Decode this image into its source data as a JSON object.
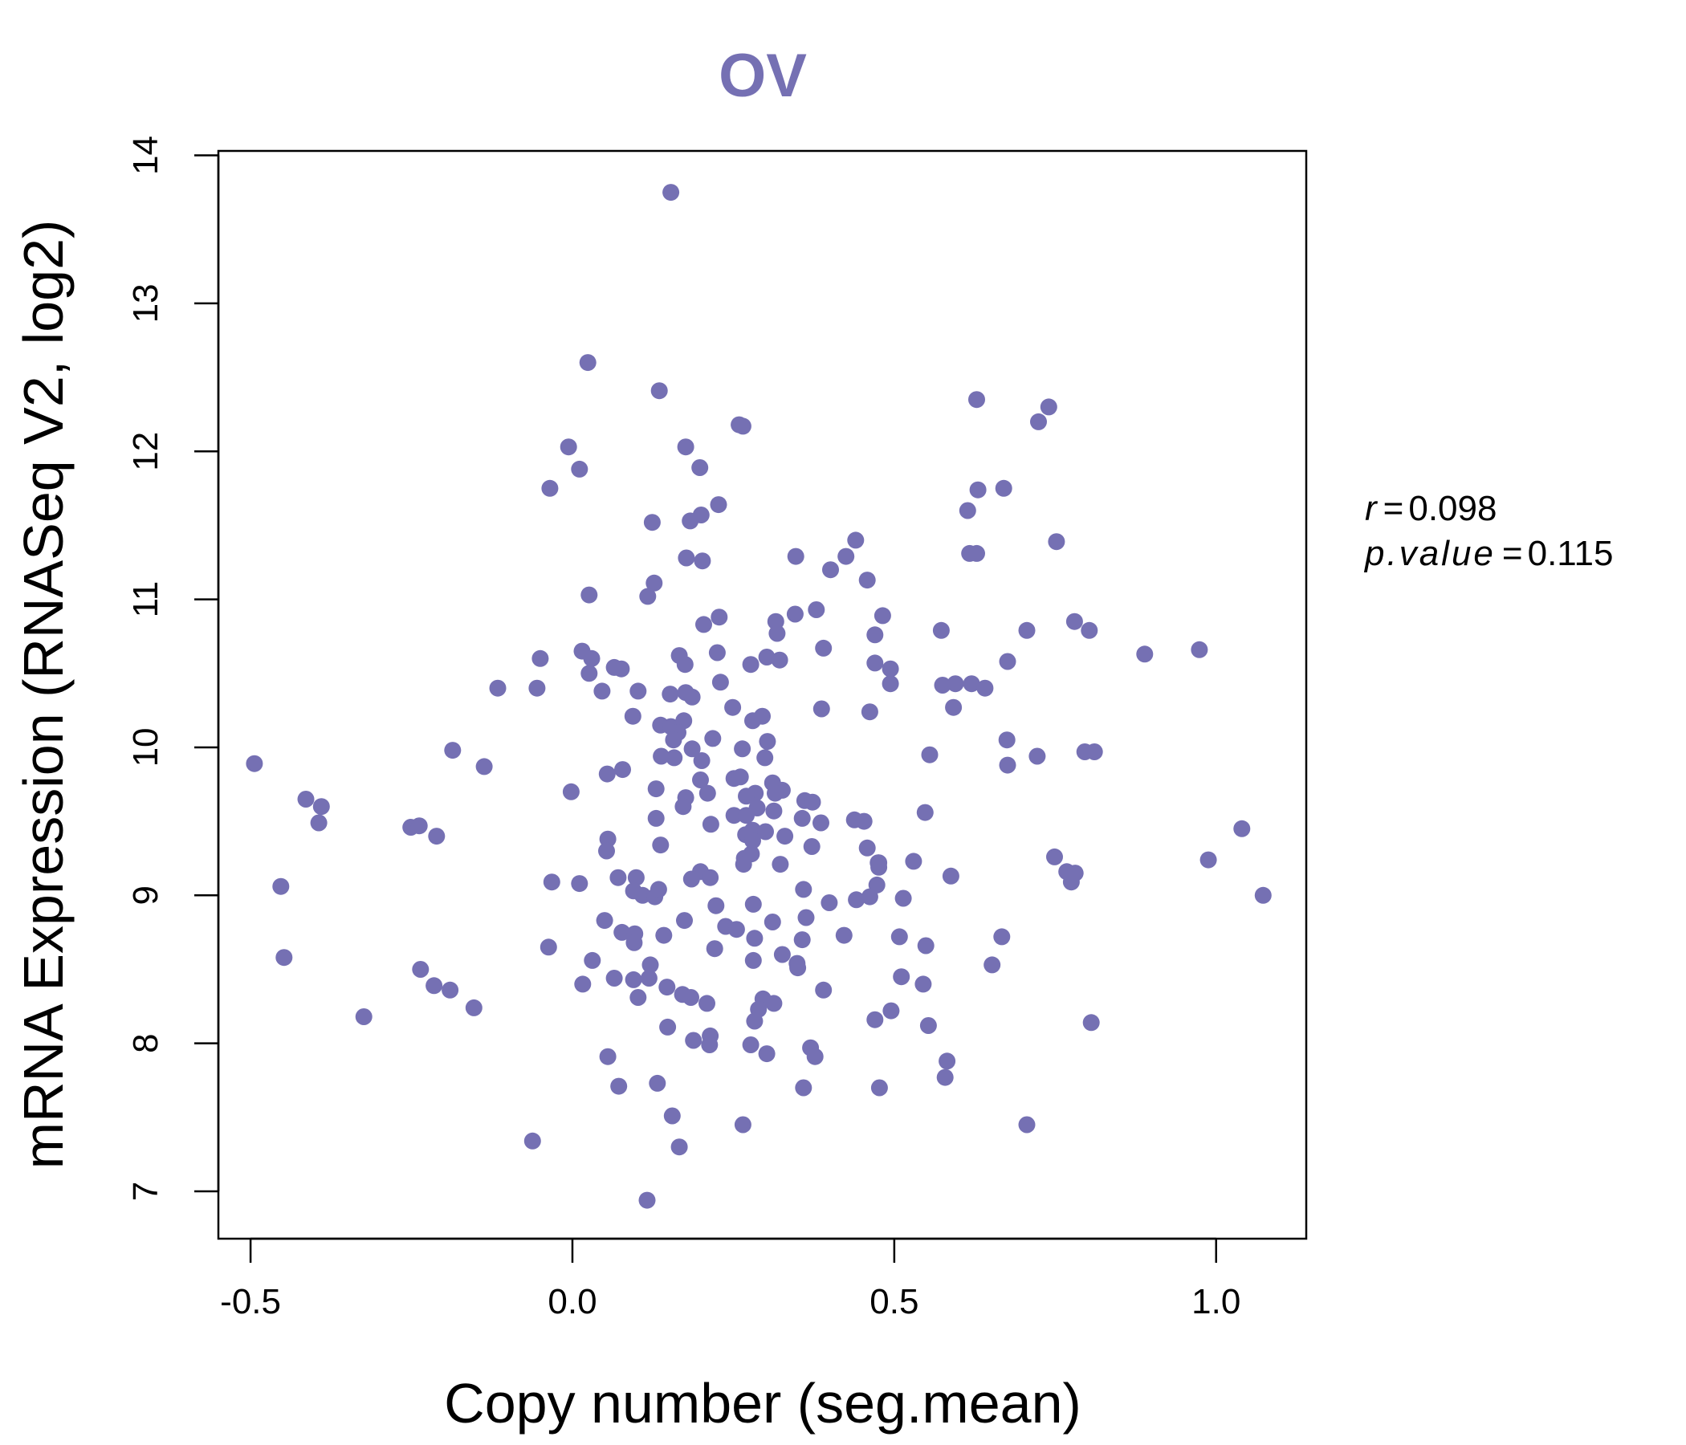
{
  "chart_data": {
    "type": "scatter",
    "title": "OV",
    "xlabel": "Copy number (seg.mean)",
    "ylabel": "mRNA Expression (RNASeq V2, log2)",
    "xlim": [
      -0.55,
      1.14
    ],
    "ylim": [
      6.68,
      14.03
    ],
    "x_ticks": [
      -0.5,
      0.0,
      0.5,
      1.0
    ],
    "x_tick_labels": [
      "-0.5",
      "0.0",
      "0.5",
      "1.0"
    ],
    "y_ticks": [
      7,
      8,
      9,
      10,
      11,
      12,
      13,
      14
    ],
    "y_tick_labels": [
      "7",
      "8",
      "9",
      "10",
      "11",
      "12",
      "13",
      "14"
    ],
    "grid": false,
    "point_color": "#7570b3",
    "stats": {
      "r_label": "r",
      "r_value": "0.098",
      "p_label": "p.value",
      "p_value": "0.115"
    },
    "points": [
      [
        0.153,
        13.75
      ],
      [
        0.024,
        12.6
      ],
      [
        0.135,
        12.41
      ],
      [
        0.259,
        12.18
      ],
      [
        0.265,
        12.17
      ],
      [
        -0.006,
        12.03
      ],
      [
        0.176,
        12.03
      ],
      [
        0.198,
        11.89
      ],
      [
        0.011,
        11.88
      ],
      [
        -0.035,
        11.75
      ],
      [
        0.227,
        11.64
      ],
      [
        0.2,
        11.57
      ],
      [
        0.183,
        11.53
      ],
      [
        0.124,
        11.52
      ],
      [
        0.177,
        11.28
      ],
      [
        0.202,
        11.26
      ],
      [
        0.127,
        11.11
      ],
      [
        0.117,
        11.02
      ],
      [
        0.026,
        11.03
      ],
      [
        0.316,
        10.85
      ],
      [
        0.228,
        10.88
      ],
      [
        0.204,
        10.83
      ],
      [
        0.318,
        10.77
      ],
      [
        0.346,
        10.9
      ],
      [
        0.379,
        10.93
      ],
      [
        0.401,
        11.2
      ],
      [
        0.425,
        11.29
      ],
      [
        0.44,
        11.4
      ],
      [
        0.458,
        11.13
      ],
      [
        0.482,
        10.89
      ],
      [
        0.47,
        10.76
      ],
      [
        0.347,
        11.29
      ],
      [
        0.015,
        10.65
      ],
      [
        0.03,
        10.6
      ],
      [
        0.026,
        10.5
      ],
      [
        0.065,
        10.54
      ],
      [
        0.076,
        10.53
      ],
      [
        0.166,
        10.62
      ],
      [
        0.175,
        10.56
      ],
      [
        0.225,
        10.64
      ],
      [
        0.277,
        10.56
      ],
      [
        0.302,
        10.61
      ],
      [
        0.322,
        10.59
      ],
      [
        0.39,
        10.67
      ],
      [
        0.47,
        10.57
      ],
      [
        0.494,
        10.53
      ],
      [
        0.494,
        10.43
      ],
      [
        0.046,
        10.38
      ],
      [
        0.102,
        10.38
      ],
      [
        0.152,
        10.36
      ],
      [
        0.176,
        10.37
      ],
      [
        0.186,
        10.34
      ],
      [
        0.23,
        10.44
      ],
      [
        0.249,
        10.27
      ],
      [
        0.295,
        10.21
      ],
      [
        0.387,
        10.26
      ],
      [
        0.462,
        10.24
      ],
      [
        -0.055,
        10.4
      ],
      [
        -0.116,
        10.4
      ],
      [
        -0.05,
        10.6
      ],
      [
        0.137,
        10.15
      ],
      [
        0.153,
        10.14
      ],
      [
        0.173,
        10.18
      ],
      [
        0.164,
        10.1
      ],
      [
        0.157,
        10.05
      ],
      [
        0.094,
        10.21
      ],
      [
        0.28,
        10.18
      ],
      [
        0.218,
        10.06
      ],
      [
        0.303,
        10.04
      ],
      [
        0.264,
        9.99
      ],
      [
        0.186,
        9.99
      ],
      [
        0.201,
        9.91
      ],
      [
        0.299,
        9.93
      ],
      [
        0.158,
        9.93
      ],
      [
        0.138,
        9.94
      ],
      [
        0.078,
        9.85
      ],
      [
        0.054,
        9.82
      ],
      [
        0.199,
        9.78
      ],
      [
        0.251,
        9.79
      ],
      [
        0.261,
        9.8
      ],
      [
        0.311,
        9.76
      ],
      [
        0.326,
        9.71
      ],
      [
        0.315,
        9.69
      ],
      [
        0.13,
        9.72
      ],
      [
        0.176,
        9.66
      ],
      [
        0.21,
        9.69
      ],
      [
        0.172,
        9.6
      ],
      [
        0.284,
        9.69
      ],
      [
        0.27,
        9.67
      ],
      [
        0.361,
        9.64
      ],
      [
        0.373,
        9.63
      ],
      [
        0.13,
        9.52
      ],
      [
        0.251,
        9.54
      ],
      [
        0.27,
        9.54
      ],
      [
        0.287,
        9.59
      ],
      [
        0.313,
        9.57
      ],
      [
        0.357,
        9.52
      ],
      [
        0.386,
        9.49
      ],
      [
        0.438,
        9.51
      ],
      [
        0.453,
        9.5
      ],
      [
        0.215,
        9.48
      ],
      [
        0.28,
        9.44
      ],
      [
        0.269,
        9.41
      ],
      [
        0.3,
        9.43
      ],
      [
        0.28,
        9.37
      ],
      [
        0.33,
        9.4
      ],
      [
        0.055,
        9.38
      ],
      [
        0.053,
        9.3
      ],
      [
        0.137,
        9.34
      ],
      [
        0.372,
        9.33
      ],
      [
        0.458,
        9.32
      ],
      [
        0.475,
        9.22
      ],
      [
        0.278,
        9.28
      ],
      [
        0.267,
        9.25
      ],
      [
        0.266,
        9.21
      ],
      [
        0.323,
        9.21
      ],
      [
        0.476,
        9.22
      ],
      [
        0.476,
        9.19
      ],
      [
        0.53,
        9.23
      ],
      [
        0.199,
        9.16
      ],
      [
        0.185,
        9.11
      ],
      [
        0.214,
        9.12
      ],
      [
        0.071,
        9.12
      ],
      [
        0.099,
        9.12
      ],
      [
        -0.032,
        9.09
      ],
      [
        0.011,
        9.08
      ],
      [
        0.095,
        9.03
      ],
      [
        0.109,
        9.0
      ],
      [
        0.128,
        8.99
      ],
      [
        0.134,
        9.04
      ],
      [
        0.359,
        9.04
      ],
      [
        0.399,
        8.95
      ],
      [
        0.441,
        8.97
      ],
      [
        0.462,
        8.99
      ],
      [
        0.473,
        9.07
      ],
      [
        0.514,
        8.98
      ],
      [
        0.281,
        8.94
      ],
      [
        0.223,
        8.93
      ],
      [
        0.174,
        8.83
      ],
      [
        0.238,
        8.79
      ],
      [
        0.255,
        8.77
      ],
      [
        0.311,
        8.82
      ],
      [
        0.363,
        8.85
      ],
      [
        0.05,
        8.83
      ],
      [
        0.077,
        8.75
      ],
      [
        0.097,
        8.74
      ],
      [
        0.096,
        8.68
      ],
      [
        0.142,
        8.73
      ],
      [
        0.221,
        8.64
      ],
      [
        0.283,
        8.71
      ],
      [
        0.357,
        8.7
      ],
      [
        0.422,
        8.73
      ],
      [
        0.508,
        8.72
      ],
      [
        0.549,
        8.66
      ],
      [
        0.326,
        8.6
      ],
      [
        0.349,
        8.54
      ],
      [
        0.35,
        8.51
      ],
      [
        0.281,
        8.56
      ],
      [
        0.031,
        8.56
      ],
      [
        -0.037,
        8.65
      ],
      [
        0.121,
        8.53
      ],
      [
        0.511,
        8.45
      ],
      [
        0.545,
        8.4
      ],
      [
        0.095,
        8.43
      ],
      [
        0.119,
        8.44
      ],
      [
        0.065,
        8.44
      ],
      [
        0.016,
        8.4
      ],
      [
        0.147,
        8.38
      ],
      [
        0.171,
        8.33
      ],
      [
        0.184,
        8.31
      ],
      [
        0.209,
        8.27
      ],
      [
        0.296,
        8.3
      ],
      [
        0.313,
        8.27
      ],
      [
        0.289,
        8.23
      ],
      [
        0.283,
        8.15
      ],
      [
        0.39,
        8.36
      ],
      [
        0.495,
        8.22
      ],
      [
        0.47,
        8.16
      ],
      [
        0.553,
        8.12
      ],
      [
        0.102,
        8.31
      ],
      [
        0.148,
        8.11
      ],
      [
        0.188,
        8.02
      ],
      [
        0.214,
        8.05
      ],
      [
        0.213,
        7.99
      ],
      [
        0.277,
        7.99
      ],
      [
        0.302,
        7.93
      ],
      [
        0.37,
        7.97
      ],
      [
        0.377,
        7.91
      ],
      [
        0.055,
        7.91
      ],
      [
        0.072,
        7.71
      ],
      [
        0.132,
        7.73
      ],
      [
        0.359,
        7.7
      ],
      [
        0.477,
        7.7
      ],
      [
        0.582,
        7.88
      ],
      [
        0.579,
        7.77
      ],
      [
        0.155,
        7.51
      ],
      [
        0.166,
        7.3
      ],
      [
        0.265,
        7.45
      ],
      [
        0.116,
        6.94
      ],
      [
        -0.062,
        7.34
      ],
      [
        0.555,
        9.95
      ],
      [
        0.548,
        9.56
      ],
      [
        0.588,
        9.13
      ],
      [
        0.573,
        10.79
      ],
      [
        0.575,
        10.42
      ],
      [
        0.595,
        10.43
      ],
      [
        0.592,
        10.27
      ],
      [
        0.62,
        10.43
      ],
      [
        0.617,
        11.31
      ],
      [
        0.614,
        11.6
      ],
      [
        0.628,
        11.31
      ],
      [
        0.628,
        12.35
      ],
      [
        0.63,
        11.74
      ],
      [
        0.641,
        10.4
      ],
      [
        0.67,
        11.75
      ],
      [
        0.676,
        10.58
      ],
      [
        0.675,
        10.05
      ],
      [
        0.676,
        9.88
      ],
      [
        0.706,
        10.79
      ],
      [
        0.722,
        9.94
      ],
      [
        0.724,
        12.2
      ],
      [
        0.74,
        12.3
      ],
      [
        0.752,
        11.39
      ],
      [
        0.749,
        9.26
      ],
      [
        0.768,
        9.16
      ],
      [
        0.775,
        9.09
      ],
      [
        0.781,
        9.15
      ],
      [
        0.78,
        10.85
      ],
      [
        0.796,
        9.97
      ],
      [
        0.811,
        9.97
      ],
      [
        0.803,
        10.79
      ],
      [
        0.806,
        8.14
      ],
      [
        0.889,
        10.63
      ],
      [
        0.974,
        10.66
      ],
      [
        0.988,
        9.24
      ],
      [
        1.04,
        9.45
      ],
      [
        1.073,
        9.0
      ],
      [
        0.652,
        8.53
      ],
      [
        0.667,
        8.72
      ],
      [
        0.706,
        7.45
      ],
      [
        -0.494,
        9.89
      ],
      [
        -0.414,
        9.65
      ],
      [
        -0.39,
        9.6
      ],
      [
        -0.394,
        9.49
      ],
      [
        -0.453,
        9.06
      ],
      [
        -0.448,
        8.58
      ],
      [
        -0.324,
        8.18
      ],
      [
        -0.251,
        9.46
      ],
      [
        -0.238,
        9.47
      ],
      [
        -0.211,
        9.4
      ],
      [
        -0.236,
        8.5
      ],
      [
        -0.215,
        8.39
      ],
      [
        -0.19,
        8.36
      ],
      [
        -0.153,
        8.24
      ],
      [
        -0.186,
        9.98
      ],
      [
        -0.137,
        9.87
      ],
      [
        -0.002,
        9.7
      ]
    ]
  }
}
